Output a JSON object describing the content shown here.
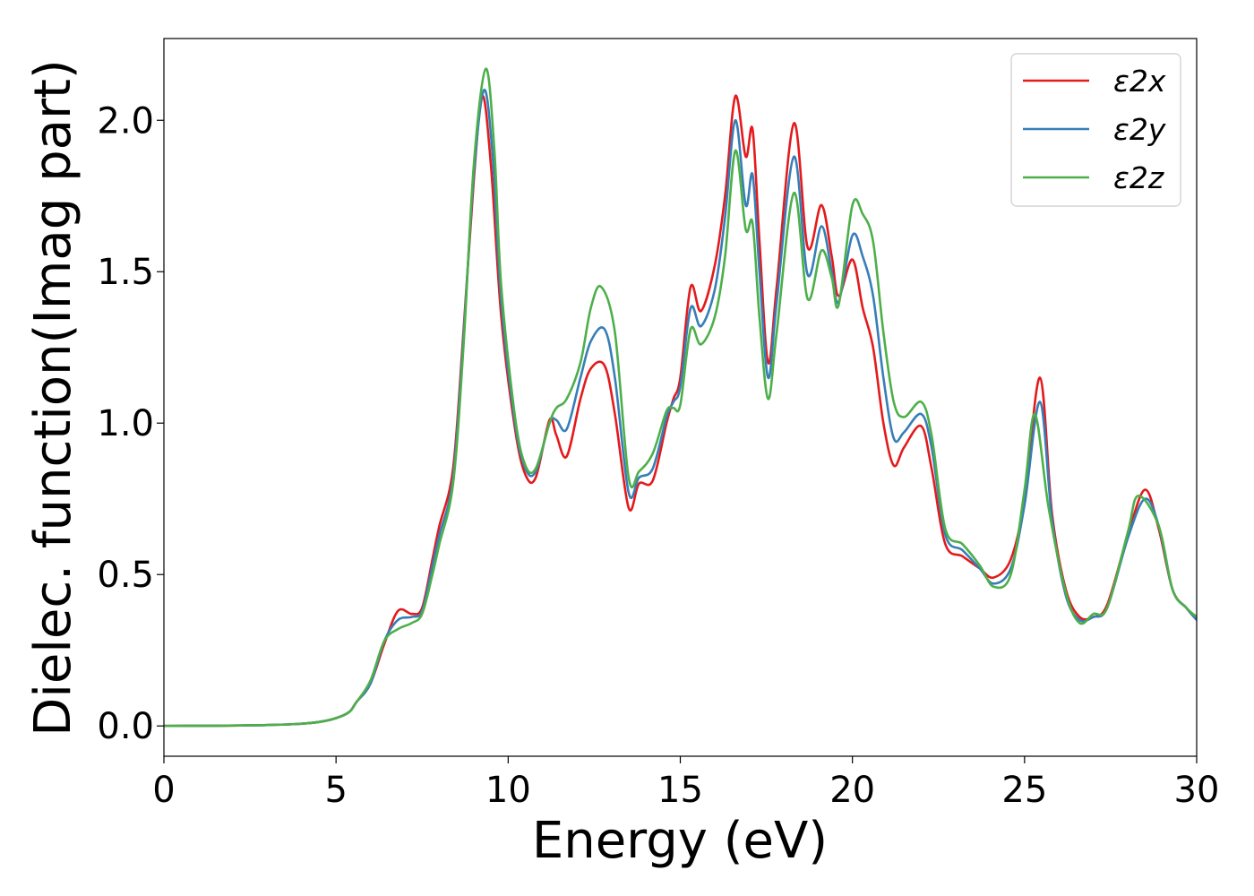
{
  "chart_data": {
    "type": "line",
    "xlabel": "Energy (eV)",
    "ylabel": "Dielec. function(Imag part)",
    "xlim": [
      0,
      30
    ],
    "ylim": [
      -0.1,
      2.27
    ],
    "x_ticks": [
      "0",
      "5",
      "10",
      "15",
      "20",
      "25",
      "30"
    ],
    "y_ticks": [
      "0.0",
      "0.5",
      "1.0",
      "1.5",
      "2.0"
    ],
    "grid": false,
    "legend_position": "top-right",
    "series": [
      {
        "name": "ε2x",
        "color": "#e41a1c",
        "points": [
          [
            0,
            0
          ],
          [
            3,
            0.003
          ],
          [
            4.5,
            0.013
          ],
          [
            5.3,
            0.04
          ],
          [
            5.6,
            0.08
          ],
          [
            6,
            0.14
          ],
          [
            6.4,
            0.27
          ],
          [
            6.8,
            0.38
          ],
          [
            7.2,
            0.37
          ],
          [
            7.5,
            0.39
          ],
          [
            7.8,
            0.55
          ],
          [
            8,
            0.66
          ],
          [
            8.4,
            0.85
          ],
          [
            8.7,
            1.3
          ],
          [
            9,
            1.8
          ],
          [
            9.25,
            2.08
          ],
          [
            9.5,
            1.85
          ],
          [
            9.8,
            1.35
          ],
          [
            10.2,
            0.98
          ],
          [
            10.5,
            0.83
          ],
          [
            10.8,
            0.82
          ],
          [
            11.2,
            1.01
          ],
          [
            11.4,
            0.96
          ],
          [
            11.7,
            0.89
          ],
          [
            12.1,
            1.08
          ],
          [
            12.4,
            1.18
          ],
          [
            12.8,
            1.19
          ],
          [
            13.1,
            1.03
          ],
          [
            13.5,
            0.72
          ],
          [
            13.8,
            0.8
          ],
          [
            14.2,
            0.81
          ],
          [
            14.6,
            1.0
          ],
          [
            14.8,
            1.08
          ],
          [
            15,
            1.15
          ],
          [
            15.3,
            1.45
          ],
          [
            15.6,
            1.37
          ],
          [
            16,
            1.52
          ],
          [
            16.3,
            1.75
          ],
          [
            16.6,
            2.08
          ],
          [
            16.9,
            1.88
          ],
          [
            17.1,
            1.97
          ],
          [
            17.3,
            1.6
          ],
          [
            17.55,
            1.2
          ],
          [
            17.8,
            1.45
          ],
          [
            18.3,
            1.99
          ],
          [
            18.7,
            1.58
          ],
          [
            19.1,
            1.72
          ],
          [
            19.4,
            1.55
          ],
          [
            19.6,
            1.42
          ],
          [
            20,
            1.54
          ],
          [
            20.3,
            1.38
          ],
          [
            20.6,
            1.25
          ],
          [
            20.9,
            1.0
          ],
          [
            21.2,
            0.86
          ],
          [
            21.5,
            0.92
          ],
          [
            22,
            0.99
          ],
          [
            22.3,
            0.85
          ],
          [
            22.7,
            0.6
          ],
          [
            23.2,
            0.56
          ],
          [
            23.7,
            0.52
          ],
          [
            24.1,
            0.49
          ],
          [
            24.6,
            0.55
          ],
          [
            25,
            0.75
          ],
          [
            25.45,
            1.15
          ],
          [
            25.8,
            0.7
          ],
          [
            26.2,
            0.45
          ],
          [
            26.6,
            0.36
          ],
          [
            27,
            0.36
          ],
          [
            27.4,
            0.4
          ],
          [
            28,
            0.63
          ],
          [
            28.5,
            0.78
          ],
          [
            28.9,
            0.65
          ],
          [
            29.3,
            0.45
          ],
          [
            29.7,
            0.39
          ],
          [
            30,
            0.35
          ]
        ]
      },
      {
        "name": "ε2y",
        "color": "#377eb8",
        "points": [
          [
            0,
            0
          ],
          [
            3,
            0.003
          ],
          [
            4.5,
            0.013
          ],
          [
            5.3,
            0.04
          ],
          [
            5.6,
            0.08
          ],
          [
            6,
            0.14
          ],
          [
            6.4,
            0.28
          ],
          [
            6.8,
            0.35
          ],
          [
            7.2,
            0.36
          ],
          [
            7.5,
            0.38
          ],
          [
            7.8,
            0.53
          ],
          [
            8,
            0.63
          ],
          [
            8.4,
            0.82
          ],
          [
            8.7,
            1.28
          ],
          [
            9,
            1.82
          ],
          [
            9.3,
            2.1
          ],
          [
            9.55,
            1.88
          ],
          [
            9.8,
            1.4
          ],
          [
            10.2,
            1.0
          ],
          [
            10.5,
            0.85
          ],
          [
            10.8,
            0.84
          ],
          [
            11.2,
            1.0
          ],
          [
            11.4,
            1.01
          ],
          [
            11.7,
            0.98
          ],
          [
            12.1,
            1.15
          ],
          [
            12.4,
            1.27
          ],
          [
            12.8,
            1.31
          ],
          [
            13.1,
            1.15
          ],
          [
            13.5,
            0.77
          ],
          [
            13.8,
            0.82
          ],
          [
            14.2,
            0.85
          ],
          [
            14.6,
            1.02
          ],
          [
            14.8,
            1.07
          ],
          [
            15,
            1.12
          ],
          [
            15.3,
            1.38
          ],
          [
            15.6,
            1.32
          ],
          [
            16,
            1.44
          ],
          [
            16.3,
            1.68
          ],
          [
            16.6,
            2.0
          ],
          [
            16.9,
            1.72
          ],
          [
            17.1,
            1.82
          ],
          [
            17.3,
            1.5
          ],
          [
            17.55,
            1.15
          ],
          [
            17.8,
            1.4
          ],
          [
            18.3,
            1.88
          ],
          [
            18.7,
            1.49
          ],
          [
            19.1,
            1.65
          ],
          [
            19.4,
            1.5
          ],
          [
            19.6,
            1.4
          ],
          [
            20,
            1.62
          ],
          [
            20.3,
            1.55
          ],
          [
            20.6,
            1.42
          ],
          [
            20.9,
            1.15
          ],
          [
            21.2,
            0.95
          ],
          [
            21.5,
            0.97
          ],
          [
            22,
            1.03
          ],
          [
            22.3,
            0.92
          ],
          [
            22.7,
            0.63
          ],
          [
            23.2,
            0.58
          ],
          [
            23.7,
            0.52
          ],
          [
            24.1,
            0.47
          ],
          [
            24.6,
            0.52
          ],
          [
            25,
            0.73
          ],
          [
            25.45,
            1.07
          ],
          [
            25.8,
            0.68
          ],
          [
            26.2,
            0.43
          ],
          [
            26.6,
            0.35
          ],
          [
            27,
            0.36
          ],
          [
            27.4,
            0.39
          ],
          [
            28,
            0.62
          ],
          [
            28.5,
            0.75
          ],
          [
            28.9,
            0.66
          ],
          [
            29.3,
            0.45
          ],
          [
            29.7,
            0.39
          ],
          [
            30,
            0.35
          ]
        ]
      },
      {
        "name": "ε2z",
        "color": "#4daf4a",
        "points": [
          [
            0,
            0
          ],
          [
            3,
            0.003
          ],
          [
            4.5,
            0.013
          ],
          [
            5.3,
            0.04
          ],
          [
            5.6,
            0.08
          ],
          [
            6,
            0.15
          ],
          [
            6.4,
            0.28
          ],
          [
            6.8,
            0.32
          ],
          [
            7.2,
            0.34
          ],
          [
            7.5,
            0.37
          ],
          [
            7.8,
            0.5
          ],
          [
            8,
            0.6
          ],
          [
            8.4,
            0.8
          ],
          [
            8.7,
            1.25
          ],
          [
            9,
            1.85
          ],
          [
            9.35,
            2.17
          ],
          [
            9.6,
            1.9
          ],
          [
            9.8,
            1.45
          ],
          [
            10.2,
            1.02
          ],
          [
            10.5,
            0.86
          ],
          [
            10.8,
            0.85
          ],
          [
            11.2,
            1.0
          ],
          [
            11.4,
            1.05
          ],
          [
            11.7,
            1.08
          ],
          [
            12.1,
            1.2
          ],
          [
            12.4,
            1.38
          ],
          [
            12.7,
            1.45
          ],
          [
            13.1,
            1.3
          ],
          [
            13.5,
            0.82
          ],
          [
            13.8,
            0.84
          ],
          [
            14.2,
            0.9
          ],
          [
            14.6,
            1.04
          ],
          [
            14.8,
            1.05
          ],
          [
            15,
            1.06
          ],
          [
            15.3,
            1.31
          ],
          [
            15.6,
            1.26
          ],
          [
            16,
            1.35
          ],
          [
            16.3,
            1.55
          ],
          [
            16.6,
            1.9
          ],
          [
            16.9,
            1.64
          ],
          [
            17.1,
            1.66
          ],
          [
            17.3,
            1.35
          ],
          [
            17.55,
            1.08
          ],
          [
            17.8,
            1.3
          ],
          [
            18.3,
            1.76
          ],
          [
            18.7,
            1.41
          ],
          [
            19.1,
            1.57
          ],
          [
            19.4,
            1.48
          ],
          [
            19.6,
            1.39
          ],
          [
            20,
            1.72
          ],
          [
            20.3,
            1.69
          ],
          [
            20.6,
            1.6
          ],
          [
            20.9,
            1.3
          ],
          [
            21.2,
            1.07
          ],
          [
            21.5,
            1.02
          ],
          [
            22,
            1.07
          ],
          [
            22.3,
            0.96
          ],
          [
            22.7,
            0.65
          ],
          [
            23.2,
            0.6
          ],
          [
            23.7,
            0.53
          ],
          [
            24.1,
            0.46
          ],
          [
            24.6,
            0.5
          ],
          [
            25,
            0.78
          ],
          [
            25.3,
            1.03
          ],
          [
            25.7,
            0.72
          ],
          [
            26.2,
            0.44
          ],
          [
            26.6,
            0.34
          ],
          [
            27,
            0.37
          ],
          [
            27.4,
            0.39
          ],
          [
            28,
            0.64
          ],
          [
            28.3,
            0.76
          ],
          [
            28.9,
            0.66
          ],
          [
            29.3,
            0.45
          ],
          [
            29.7,
            0.39
          ],
          [
            30,
            0.36
          ]
        ]
      }
    ]
  }
}
